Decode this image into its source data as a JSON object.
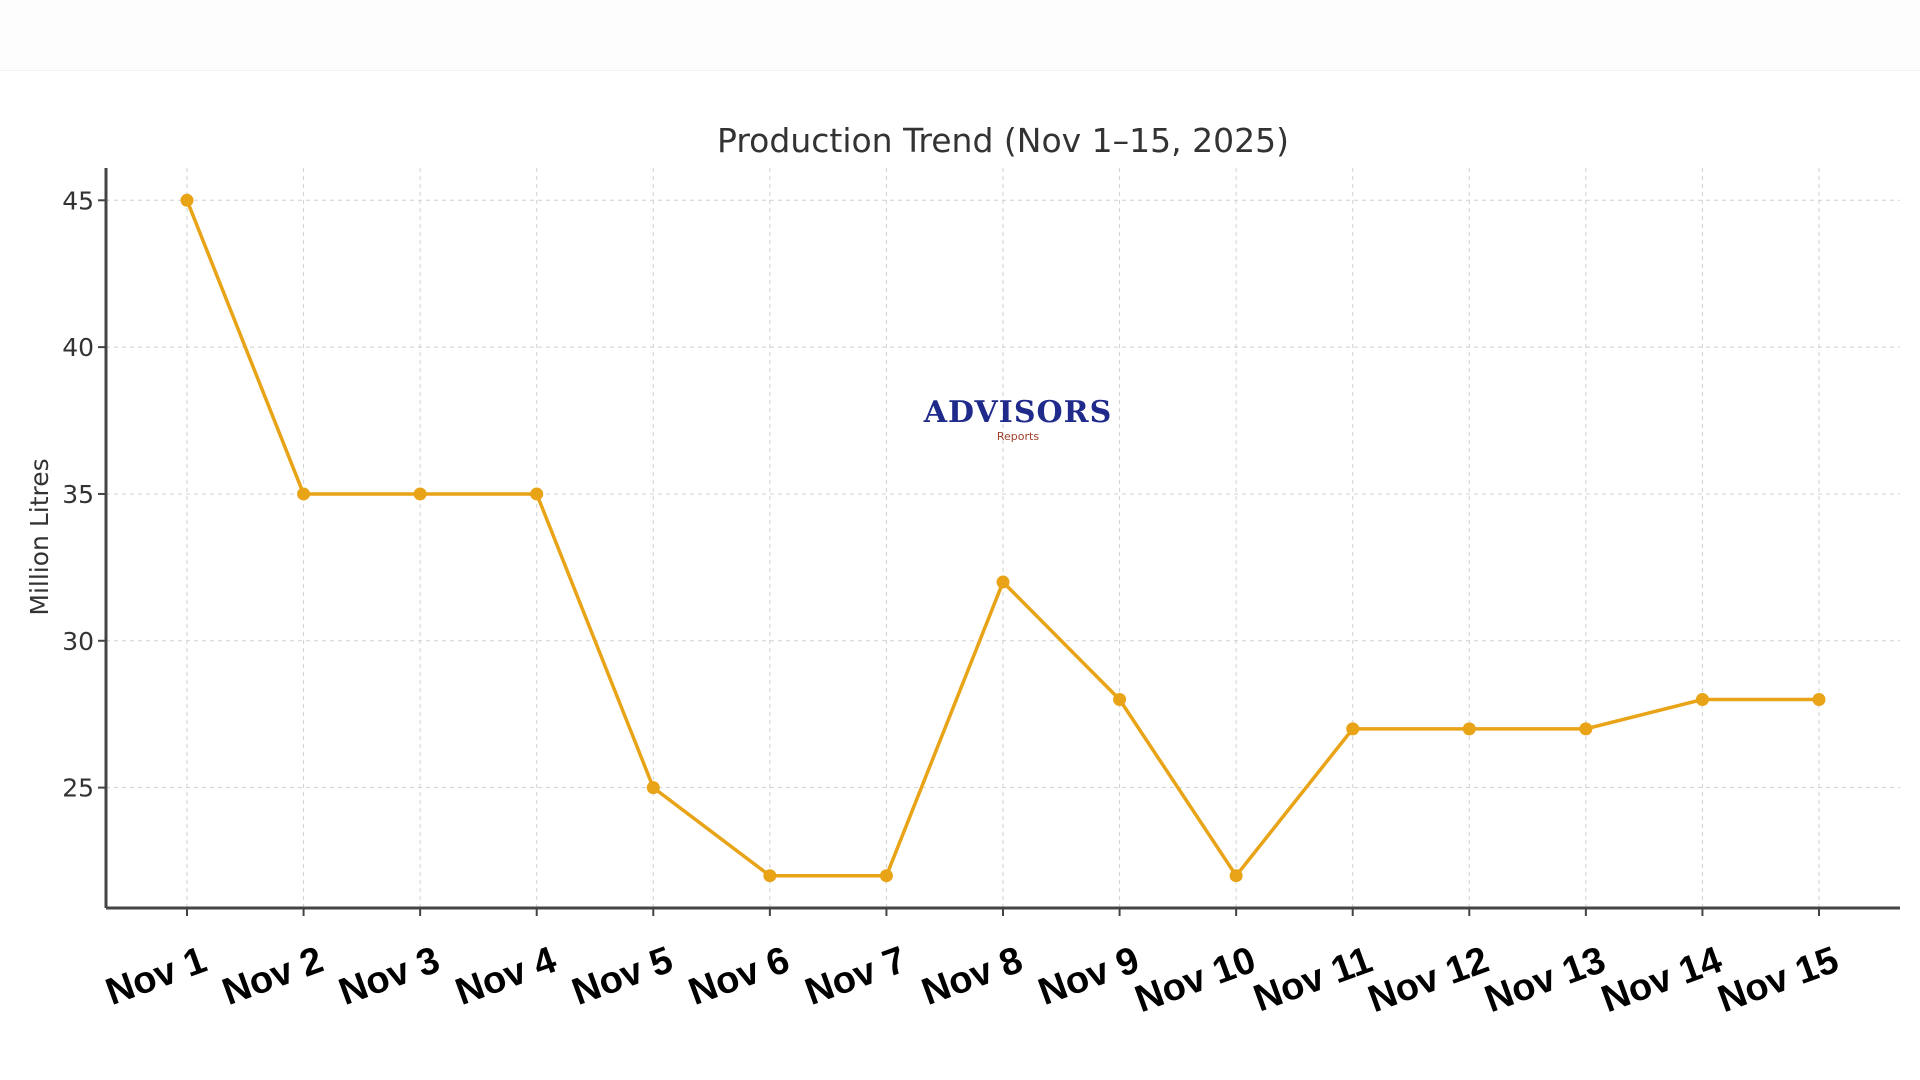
{
  "chart_data": {
    "type": "line",
    "title": "Production Trend (Nov 1–15, 2025)",
    "xlabel": "",
    "ylabel": "Million Litres",
    "categories": [
      "Nov 1",
      "Nov 2",
      "Nov 3",
      "Nov 4",
      "Nov 5",
      "Nov 6",
      "Nov 7",
      "Nov 8",
      "Nov 9",
      "Nov 10",
      "Nov 11",
      "Nov 12",
      "Nov 13",
      "Nov 14",
      "Nov 15"
    ],
    "values": [
      45,
      35,
      35,
      35,
      25,
      22,
      22,
      32,
      28,
      22,
      27,
      27,
      27,
      28,
      28
    ],
    "yticks": [
      25,
      30,
      35,
      40,
      45
    ],
    "ylim": [
      20.9,
      46.1
    ],
    "grid": true,
    "marker": "circle",
    "color": "#E8A317"
  },
  "watermark": {
    "main": "ADVISORS",
    "sub": "Reports"
  }
}
